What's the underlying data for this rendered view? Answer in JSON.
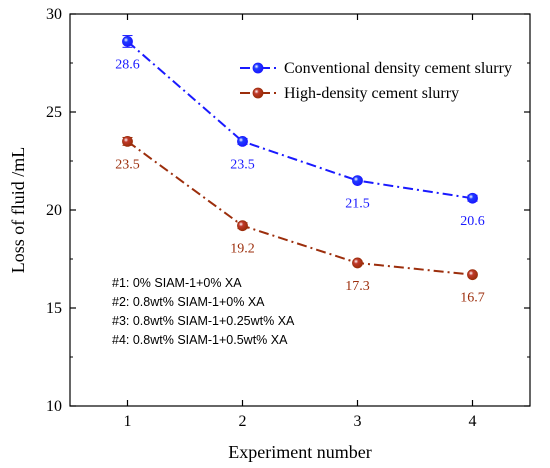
{
  "chart_data": {
    "type": "line",
    "x": [
      1,
      2,
      3,
      4
    ],
    "xlabel": "Experiment number",
    "ylabel": "Loss of  fluid /mL",
    "xlim": [
      0.5,
      4.5
    ],
    "ylim": [
      10,
      30
    ],
    "xticks": [
      "1",
      "2",
      "3",
      "4"
    ],
    "yticks": [
      "10",
      "15",
      "20",
      "25",
      "30"
    ],
    "grid": false,
    "legend_position": "top-right",
    "series": [
      {
        "name": "Conventional density cement slurry",
        "values": [
          28.6,
          23.5,
          21.5,
          20.6
        ],
        "labels": [
          "28.6",
          "23.5",
          "21.5",
          "20.6"
        ],
        "errors": [
          0.3,
          0.15,
          0.1,
          0.15
        ],
        "color": "#1a1aff",
        "marker_color": "#1e3cff",
        "line_style": "dash-dot"
      },
      {
        "name": "High-density cement slurry",
        "values": [
          23.5,
          19.2,
          17.3,
          16.7
        ],
        "labels": [
          "23.5",
          "19.2",
          "17.3",
          "16.7"
        ],
        "errors": [
          0.2,
          0.15,
          0.1,
          0.1
        ],
        "color": "#9c2e0c",
        "marker_color": "#c0392b",
        "line_style": "dash-dot"
      }
    ],
    "annotations": [
      "#1: 0% SIAM-1+0% XA",
      "#2: 0.8wt% SIAM-1+0% XA",
      "#3: 0.8wt% SIAM-1+0.25wt% XA",
      "#4: 0.8wt% SIAM-1+0.5wt% XA"
    ]
  }
}
